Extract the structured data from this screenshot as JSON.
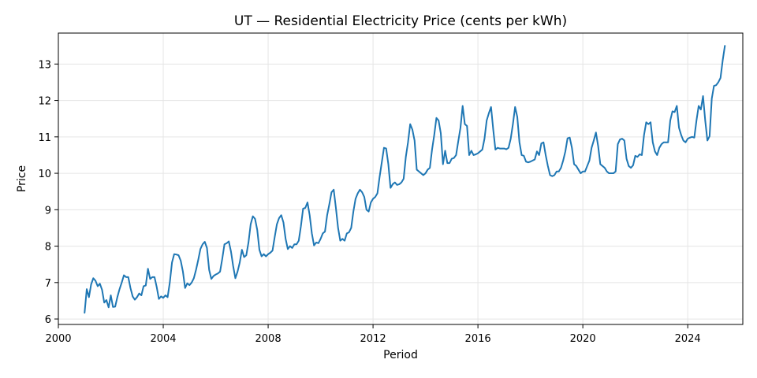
{
  "chart_data": {
    "type": "line",
    "title": "UT — Residential Electricity Price (cents per kWh)",
    "xlabel": "Period",
    "ylabel": "Price",
    "xlim": [
      2000.0,
      2026.1
    ],
    "ylim": [
      5.85,
      13.85
    ],
    "x_ticks": [
      2000,
      2004,
      2008,
      2012,
      2016,
      2020,
      2024
    ],
    "y_ticks": [
      6,
      7,
      8,
      9,
      10,
      11,
      12,
      13
    ],
    "grid": true,
    "line_color": "#1f77b4",
    "start_month": "2001-01",
    "series": [
      {
        "values": [
          6.17,
          6.82,
          6.6,
          6.95,
          7.12,
          7.05,
          6.9,
          6.97,
          6.8,
          6.45,
          6.52,
          6.32,
          6.65,
          6.33,
          6.34,
          6.6,
          6.82,
          7.0,
          7.2,
          7.15,
          7.15,
          6.85,
          6.62,
          6.53,
          6.6,
          6.7,
          6.65,
          6.9,
          6.92,
          7.38,
          7.1,
          7.15,
          7.15,
          6.88,
          6.55,
          6.62,
          6.58,
          6.65,
          6.6,
          7.0,
          7.55,
          7.78,
          7.77,
          7.75,
          7.6,
          7.3,
          6.85,
          6.98,
          6.93,
          7.0,
          7.12,
          7.35,
          7.62,
          7.92,
          8.05,
          8.12,
          7.95,
          7.35,
          7.1,
          7.18,
          7.22,
          7.25,
          7.3,
          7.65,
          8.05,
          8.08,
          8.13,
          7.85,
          7.45,
          7.12,
          7.3,
          7.55,
          7.9,
          7.7,
          7.75,
          8.1,
          8.6,
          8.82,
          8.75,
          8.45,
          7.9,
          7.72,
          7.78,
          7.72,
          7.78,
          7.82,
          7.88,
          8.25,
          8.6,
          8.77,
          8.85,
          8.65,
          8.2,
          7.92,
          8.0,
          7.95,
          8.05,
          8.05,
          8.15,
          8.55,
          9.03,
          9.05,
          9.2,
          8.85,
          8.35,
          8.02,
          8.1,
          8.08,
          8.2,
          8.35,
          8.4,
          8.85,
          9.15,
          9.48,
          9.55,
          9.05,
          8.5,
          8.15,
          8.2,
          8.15,
          8.35,
          8.38,
          8.5,
          8.95,
          9.3,
          9.45,
          9.55,
          9.48,
          9.35,
          9.0,
          8.95,
          9.2,
          9.3,
          9.35,
          9.45,
          9.9,
          10.3,
          10.7,
          10.68,
          10.25,
          9.6,
          9.7,
          9.75,
          9.68,
          9.7,
          9.75,
          9.85,
          10.45,
          10.85,
          11.35,
          11.2,
          10.9,
          10.1,
          10.05,
          10.0,
          9.95,
          10.0,
          10.1,
          10.15,
          10.65,
          11.05,
          11.52,
          11.45,
          11.1,
          10.25,
          10.62,
          10.28,
          10.28,
          10.4,
          10.42,
          10.5,
          10.88,
          11.25,
          11.85,
          11.35,
          11.3,
          10.5,
          10.62,
          10.5,
          10.52,
          10.55,
          10.6,
          10.65,
          10.95,
          11.45,
          11.65,
          11.82,
          11.2,
          10.65,
          10.7,
          10.68,
          10.68,
          10.68,
          10.66,
          10.7,
          10.95,
          11.35,
          11.82,
          11.55,
          10.85,
          10.5,
          10.48,
          10.32,
          10.3,
          10.32,
          10.35,
          10.38,
          10.6,
          10.5,
          10.82,
          10.85,
          10.5,
          10.2,
          9.95,
          9.92,
          9.95,
          10.05,
          10.05,
          10.15,
          10.35,
          10.6,
          10.96,
          10.98,
          10.7,
          10.25,
          10.2,
          10.1,
          10.0,
          10.05,
          10.05,
          10.2,
          10.35,
          10.7,
          10.9,
          11.12,
          10.75,
          10.25,
          10.2,
          10.15,
          10.05,
          10.0,
          10.0,
          10.0,
          10.05,
          10.8,
          10.93,
          10.95,
          10.9,
          10.4,
          10.2,
          10.15,
          10.22,
          10.48,
          10.45,
          10.52,
          10.5,
          11.05,
          11.4,
          11.35,
          11.4,
          10.85,
          10.6,
          10.5,
          10.7,
          10.8,
          10.85,
          10.85,
          10.85,
          11.45,
          11.7,
          11.68,
          11.85,
          11.25,
          11.05,
          10.9,
          10.85,
          10.95,
          10.98,
          11.0,
          10.98,
          11.45,
          11.85,
          11.75,
          12.12,
          11.45,
          10.9,
          11.02,
          12.05,
          12.4,
          12.42,
          12.5,
          12.62,
          13.1,
          13.5
        ]
      }
    ]
  }
}
